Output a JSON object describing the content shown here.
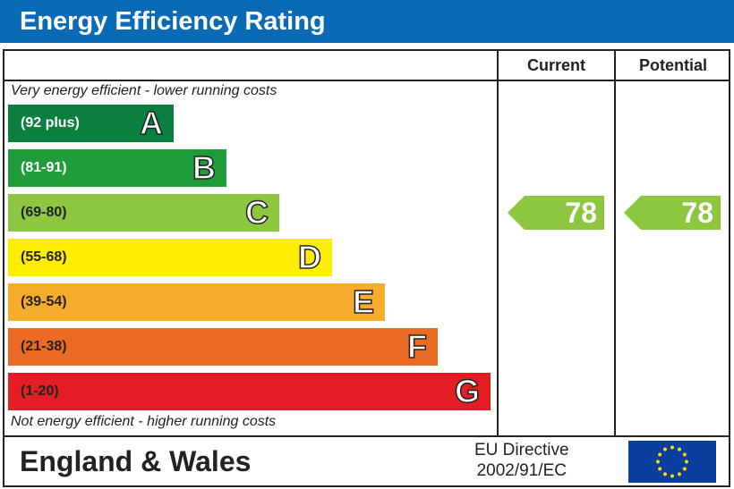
{
  "title": "Energy Efficiency Rating",
  "columns": {
    "current": "Current",
    "potential": "Potential"
  },
  "top_note": "Very energy efficient - lower running costs",
  "bottom_note": "Not energy efficient - higher running costs",
  "footer": {
    "region": "England & Wales",
    "directive_line1": "EU Directive",
    "directive_line2": "2002/91/EC",
    "flag_icon": "eu-flag-icon"
  },
  "chart_data": {
    "type": "bar",
    "title": "Energy Efficiency Rating",
    "bands": [
      {
        "letter": "A",
        "range": "(92 plus)",
        "color": "#0b7f3f",
        "text_color": "#ffffff"
      },
      {
        "letter": "B",
        "range": "(81-91)",
        "color": "#1f9b3a",
        "text_color": "#ffffff"
      },
      {
        "letter": "C",
        "range": "(69-80)",
        "color": "#8dc63f",
        "text_color": "#222222"
      },
      {
        "letter": "D",
        "range": "(55-68)",
        "color": "#ffed00",
        "text_color": "#222222"
      },
      {
        "letter": "E",
        "range": "(39-54)",
        "color": "#f7ad2b",
        "text_color": "#222222"
      },
      {
        "letter": "F",
        "range": "(21-38)",
        "color": "#ec6b24",
        "text_color": "#222222"
      },
      {
        "letter": "G",
        "range": "(1-20)",
        "color": "#e31d23",
        "text_color": "#222222"
      }
    ],
    "current": {
      "value": "78",
      "band": "C",
      "color": "#8dc63f"
    },
    "potential": {
      "value": "78",
      "band": "C",
      "color": "#8dc63f"
    }
  }
}
